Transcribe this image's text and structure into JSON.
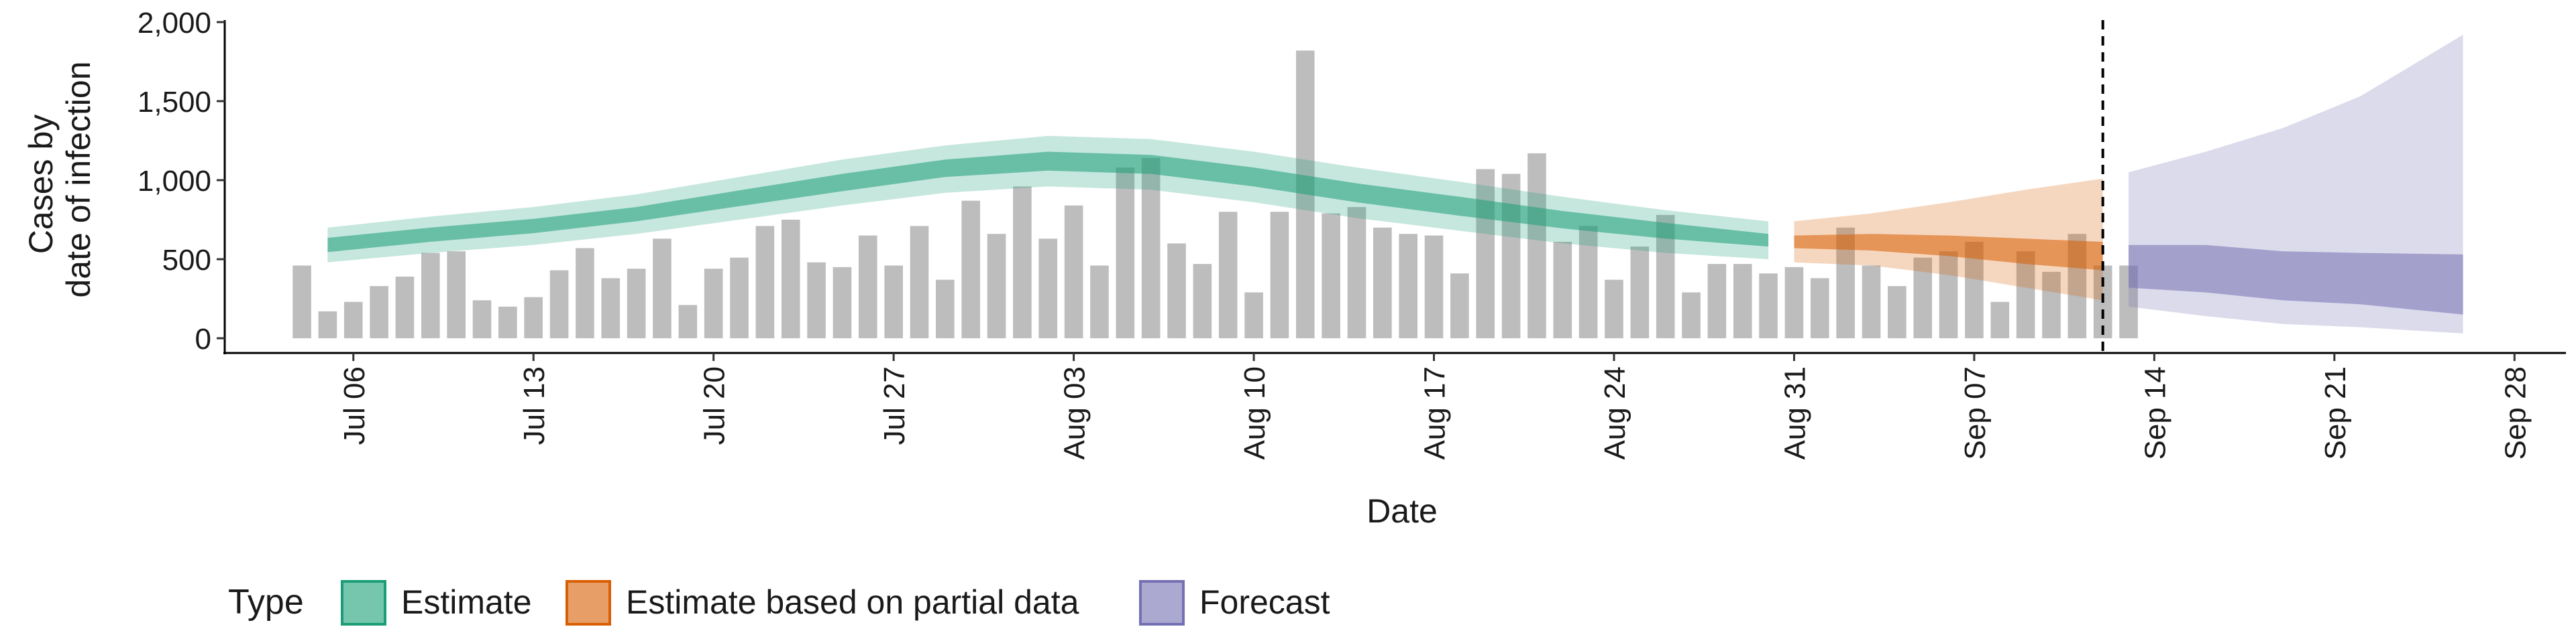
{
  "chart_data": {
    "type": "bar",
    "xlabel": "Date",
    "ylabel_lines": [
      "Cases by",
      "date of infection"
    ],
    "ylim": [
      0,
      2000
    ],
    "yticks": [
      0,
      500,
      1000,
      1500,
      2000
    ],
    "ytick_labels": [
      "0",
      "500",
      "1,000",
      "1,500",
      "2,000"
    ],
    "xlim": [
      "2020-07-01",
      "2020-09-30"
    ],
    "xticks": [
      "2020-07-06",
      "2020-07-13",
      "2020-07-20",
      "2020-07-27",
      "2020-08-03",
      "2020-08-10",
      "2020-08-17",
      "2020-08-24",
      "2020-08-31",
      "2020-09-07",
      "2020-09-14",
      "2020-09-21",
      "2020-09-28"
    ],
    "xtick_labels": [
      "Jul 06",
      "Jul 13",
      "Jul 20",
      "Jul 27",
      "Aug 03",
      "Aug 10",
      "Aug 17",
      "Aug 24",
      "Aug 31",
      "Sep 07",
      "Sep 14",
      "Sep 21",
      "Sep 28"
    ],
    "forecast_boundary": "2020-09-12",
    "legend": {
      "title": "Type",
      "position": "bottom",
      "items": [
        {
          "label": "Estimate",
          "color": "#1b9e77"
        },
        {
          "label": "Estimate based on partial data",
          "color": "#d95f02"
        },
        {
          "label": "Forecast",
          "color": "#7570b3"
        }
      ]
    },
    "reported_cases": {
      "color": "#bdbdbd",
      "start_date": "2020-07-04",
      "values": [
        460,
        170,
        230,
        330,
        390,
        540,
        550,
        240,
        200,
        260,
        430,
        570,
        380,
        440,
        630,
        210,
        440,
        510,
        710,
        750,
        480,
        450,
        650,
        460,
        710,
        370,
        870,
        660,
        960,
        630,
        840,
        460,
        1080,
        1140,
        600,
        470,
        800,
        290,
        800,
        1820,
        790,
        830,
        700,
        660,
        650,
        410,
        1070,
        1040,
        1170,
        610,
        710,
        370,
        580,
        780,
        290,
        470,
        470,
        410,
        450,
        380,
        700,
        460,
        330,
        510,
        550,
        610,
        230,
        550,
        420,
        660,
        460,
        460
      ]
    },
    "series": [
      {
        "name": "Estimate",
        "color": "#1b9e77",
        "points": [
          {
            "date": "2020-07-05",
            "lo90": 480,
            "lo50": 545,
            "median": 590,
            "hi50": 635,
            "hi90": 700
          },
          {
            "date": "2020-07-09",
            "lo90": 540,
            "lo50": 610,
            "median": 655,
            "hi50": 700,
            "hi90": 770
          },
          {
            "date": "2020-07-13",
            "lo90": 590,
            "lo50": 665,
            "median": 710,
            "hi50": 755,
            "hi90": 830
          },
          {
            "date": "2020-07-17",
            "lo90": 660,
            "lo50": 740,
            "median": 785,
            "hi50": 830,
            "hi90": 910
          },
          {
            "date": "2020-07-21",
            "lo90": 750,
            "lo50": 835,
            "median": 885,
            "hi50": 935,
            "hi90": 1020
          },
          {
            "date": "2020-07-25",
            "lo90": 840,
            "lo50": 930,
            "median": 985,
            "hi50": 1040,
            "hi90": 1130
          },
          {
            "date": "2020-07-29",
            "lo90": 920,
            "lo50": 1020,
            "median": 1075,
            "hi50": 1130,
            "hi90": 1220
          },
          {
            "date": "2020-08-02",
            "lo90": 960,
            "lo50": 1060,
            "median": 1120,
            "hi50": 1180,
            "hi90": 1280
          },
          {
            "date": "2020-08-06",
            "lo90": 940,
            "lo50": 1040,
            "median": 1100,
            "hi50": 1160,
            "hi90": 1260
          },
          {
            "date": "2020-08-10",
            "lo90": 860,
            "lo50": 960,
            "median": 1020,
            "hi50": 1080,
            "hi90": 1180
          },
          {
            "date": "2020-08-14",
            "lo90": 760,
            "lo50": 860,
            "median": 920,
            "hi50": 980,
            "hi90": 1080
          },
          {
            "date": "2020-08-18",
            "lo90": 680,
            "lo50": 775,
            "median": 835,
            "hi50": 895,
            "hi90": 990
          },
          {
            "date": "2020-08-22",
            "lo90": 600,
            "lo50": 695,
            "median": 750,
            "hi50": 805,
            "hi90": 895
          },
          {
            "date": "2020-08-26",
            "lo90": 540,
            "lo50": 630,
            "median": 680,
            "hi50": 730,
            "hi90": 810
          },
          {
            "date": "2020-08-30",
            "lo90": 500,
            "lo50": 580,
            "median": 620,
            "hi50": 660,
            "hi90": 740
          }
        ]
      },
      {
        "name": "Estimate based on partial data",
        "color": "#d95f02",
        "points": [
          {
            "date": "2020-08-31",
            "lo90": 480,
            "lo50": 570,
            "median": 610,
            "hi50": 650,
            "hi90": 740
          },
          {
            "date": "2020-09-03",
            "lo90": 460,
            "lo50": 555,
            "median": 605,
            "hi50": 660,
            "hi90": 790
          },
          {
            "date": "2020-09-06",
            "lo90": 400,
            "lo50": 520,
            "median": 580,
            "hi50": 650,
            "hi90": 860
          },
          {
            "date": "2020-09-09",
            "lo90": 320,
            "lo50": 470,
            "median": 545,
            "hi50": 630,
            "hi90": 940
          },
          {
            "date": "2020-09-12",
            "lo90": 240,
            "lo50": 430,
            "median": 510,
            "hi50": 610,
            "hi90": 1010
          }
        ]
      },
      {
        "name": "Forecast",
        "color": "#7570b3",
        "points": [
          {
            "date": "2020-09-13",
            "lo90": 200,
            "lo50": 320,
            "median": 450,
            "hi50": 590,
            "hi90": 1050
          },
          {
            "date": "2020-09-16",
            "lo90": 140,
            "lo50": 290,
            "median": 440,
            "hi50": 590,
            "hi90": 1180
          },
          {
            "date": "2020-09-19",
            "lo90": 90,
            "lo50": 240,
            "median": 395,
            "hi50": 550,
            "hi90": 1330
          },
          {
            "date": "2020-09-22",
            "lo90": 70,
            "lo50": 215,
            "median": 375,
            "hi50": 540,
            "hi90": 1530
          },
          {
            "date": "2020-09-26",
            "lo90": 30,
            "lo50": 150,
            "median": 340,
            "hi50": 530,
            "hi90": 1920
          }
        ]
      }
    ]
  }
}
